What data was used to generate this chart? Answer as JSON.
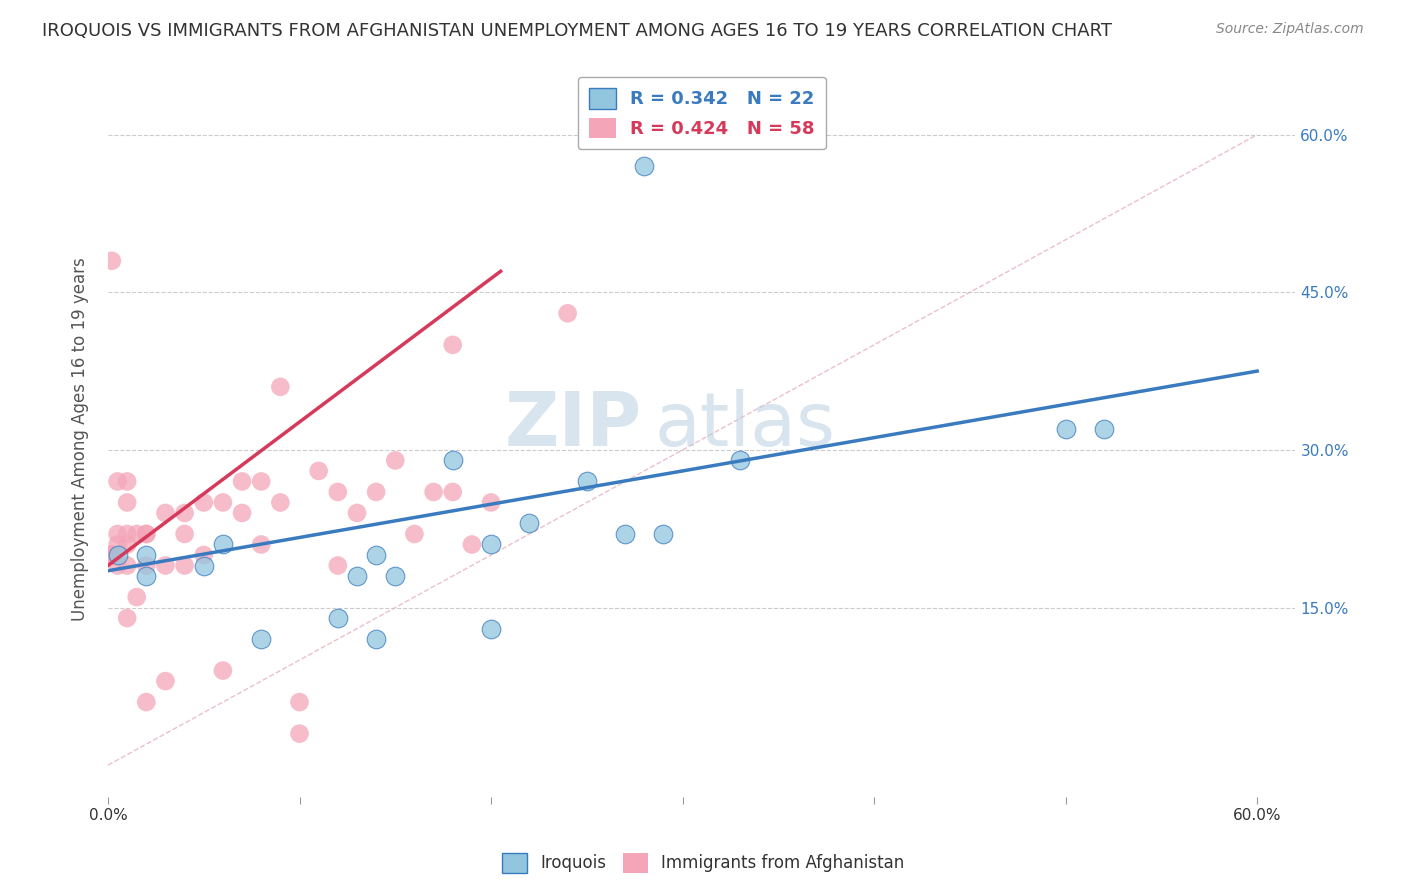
{
  "title": "IROQUOIS VS IMMIGRANTS FROM AFGHANISTAN UNEMPLOYMENT AMONG AGES 16 TO 19 YEARS CORRELATION CHART",
  "source": "Source: ZipAtlas.com",
  "ylabel": "Unemployment Among Ages 16 to 19 years",
  "legend_label1": "Iroquois",
  "legend_label2": "Immigrants from Afghanistan",
  "R1": 0.342,
  "N1": 22,
  "R2": 0.424,
  "N2": 58,
  "blue_color": "#92c5de",
  "pink_color": "#f4a6b8",
  "blue_line_color": "#3a7bbf",
  "pink_line_color": "#d63a5a",
  "xlim": [
    0.0,
    0.62
  ],
  "ylim": [
    -0.03,
    0.65
  ],
  "xticks": [
    0.0,
    0.1,
    0.2,
    0.3,
    0.4,
    0.5,
    0.6
  ],
  "yticks": [
    0.15,
    0.3,
    0.45,
    0.6
  ],
  "xtick_labels_bottom": [
    "0.0%",
    "",
    "",
    "",
    "",
    "",
    "60.0%"
  ],
  "ytick_labels_right": [
    "15.0%",
    "30.0%",
    "45.0%",
    "60.0%"
  ],
  "watermark": "ZIPatlas",
  "blue_scatter_x": [
    0.005,
    0.02,
    0.05,
    0.06,
    0.08,
    0.12,
    0.13,
    0.14,
    0.14,
    0.15,
    0.18,
    0.2,
    0.22,
    0.25,
    0.27,
    0.28,
    0.29,
    0.33,
    0.5,
    0.52,
    0.02,
    0.2
  ],
  "blue_scatter_y": [
    0.2,
    0.2,
    0.19,
    0.21,
    0.12,
    0.14,
    0.18,
    0.12,
    0.2,
    0.18,
    0.29,
    0.13,
    0.23,
    0.27,
    0.22,
    0.57,
    0.22,
    0.29,
    0.32,
    0.32,
    0.18,
    0.21
  ],
  "pink_scatter_x": [
    0.002,
    0.002,
    0.002,
    0.002,
    0.002,
    0.002,
    0.002,
    0.002,
    0.002,
    0.002,
    0.002,
    0.005,
    0.005,
    0.005,
    0.005,
    0.01,
    0.01,
    0.01,
    0.01,
    0.01,
    0.01,
    0.015,
    0.015,
    0.02,
    0.02,
    0.02,
    0.02,
    0.03,
    0.03,
    0.03,
    0.04,
    0.04,
    0.04,
    0.05,
    0.05,
    0.06,
    0.06,
    0.07,
    0.07,
    0.08,
    0.08,
    0.09,
    0.09,
    0.1,
    0.1,
    0.11,
    0.12,
    0.12,
    0.13,
    0.14,
    0.15,
    0.16,
    0.17,
    0.18,
    0.18,
    0.19,
    0.2,
    0.24
  ],
  "pink_scatter_y": [
    0.2,
    0.2,
    0.2,
    0.2,
    0.2,
    0.2,
    0.2,
    0.2,
    0.2,
    0.2,
    0.48,
    0.19,
    0.21,
    0.22,
    0.27,
    0.14,
    0.19,
    0.21,
    0.22,
    0.25,
    0.27,
    0.16,
    0.22,
    0.06,
    0.19,
    0.22,
    0.22,
    0.08,
    0.19,
    0.24,
    0.19,
    0.22,
    0.24,
    0.2,
    0.25,
    0.09,
    0.25,
    0.24,
    0.27,
    0.21,
    0.27,
    0.25,
    0.36,
    0.03,
    0.06,
    0.28,
    0.19,
    0.26,
    0.24,
    0.26,
    0.29,
    0.22,
    0.26,
    0.26,
    0.4,
    0.21,
    0.25,
    0.43
  ],
  "blue_trend_x0": 0.0,
  "blue_trend_x1": 0.6,
  "blue_trend_y0": 0.185,
  "blue_trend_y1": 0.375,
  "pink_trend_x0": 0.0,
  "pink_trend_x1": 0.205,
  "pink_trend_y0": 0.19,
  "pink_trend_y1": 0.47,
  "diag_line_x": [
    0.0,
    0.6
  ],
  "diag_line_y": [
    0.0,
    0.6
  ],
  "background_color": "#ffffff",
  "grid_color": "#cccccc"
}
